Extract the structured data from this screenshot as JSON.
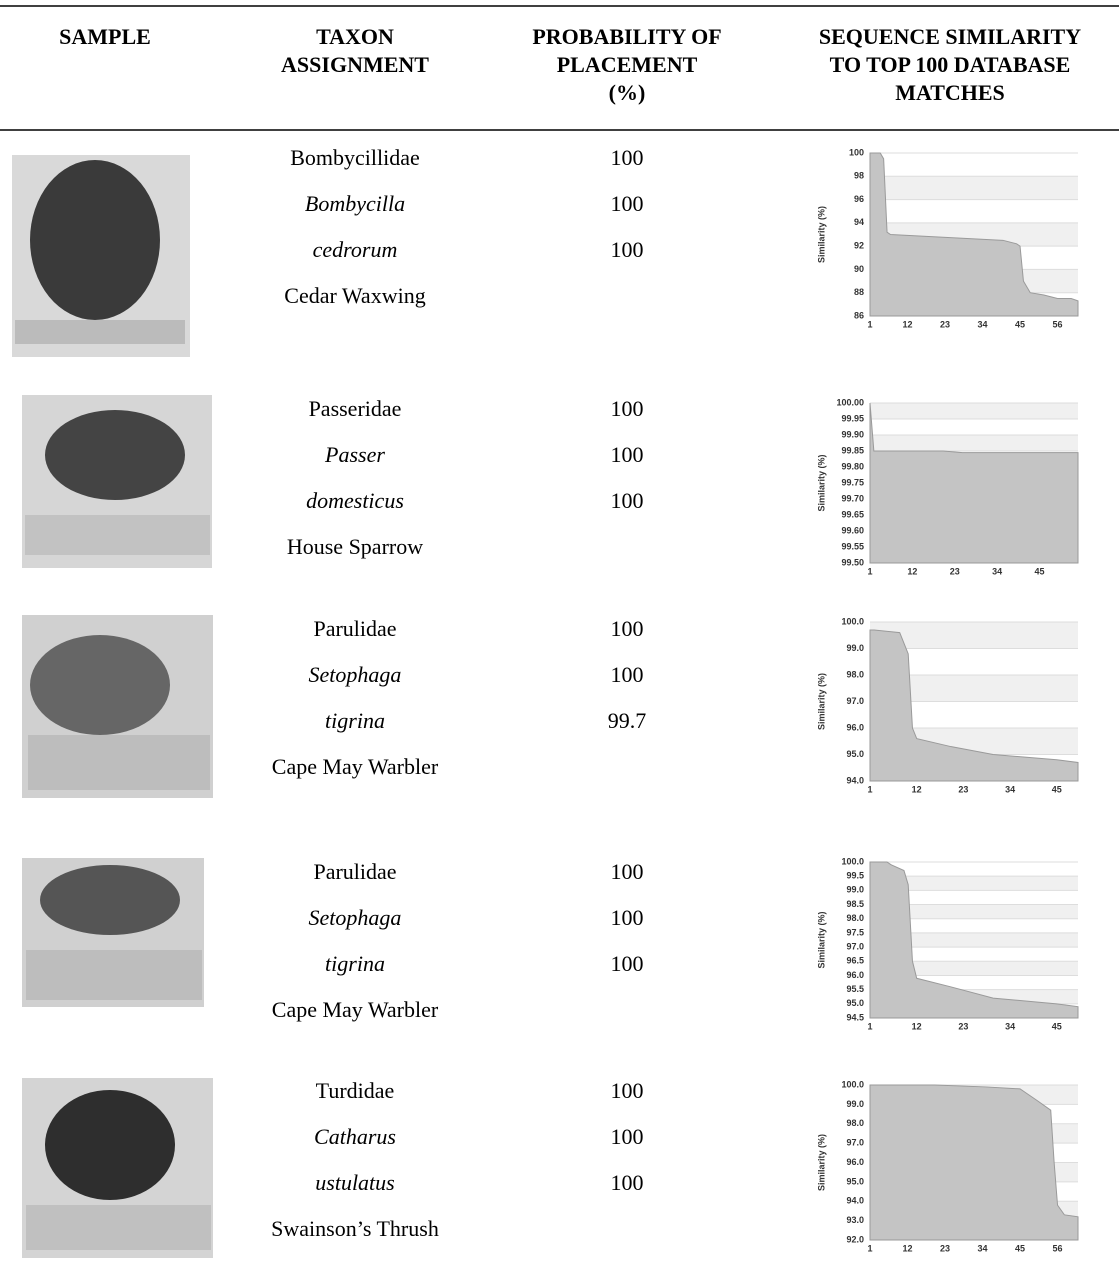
{
  "table": {
    "header": [
      [
        "SAMPLE"
      ],
      [
        "TAXON",
        "ASSIGNMENT"
      ],
      [
        "PROBABILITY OF",
        "PLACEMENT",
        "(%)"
      ],
      [
        "SEQUENCE SIMILARITY",
        "TO TOP 100 DATABASE",
        "MATCHES"
      ]
    ],
    "rows": [
      {
        "taxon": [
          "Bombycillidae",
          "Bombycilla",
          "cedrorum",
          "Cedar Waxwing"
        ],
        "probability": [
          100,
          100,
          100
        ],
        "chart": {
          "type": "area",
          "ylabel": "Similarity (%)",
          "color": "#c4c4c4",
          "x": [
            1,
            4,
            5,
            6,
            7,
            40,
            44,
            45,
            46,
            48,
            52,
            56,
            60,
            62
          ],
          "values": [
            100,
            100,
            99.5,
            93.2,
            93,
            92.5,
            92.2,
            92,
            89,
            88,
            87.8,
            87.5,
            87.5,
            87.3
          ],
          "xlim": [
            1,
            62
          ],
          "ylim": [
            86,
            100
          ],
          "xticks": [
            1,
            12,
            23,
            34,
            45,
            56
          ],
          "yticks": [
            86,
            88,
            90,
            92,
            94,
            96,
            98,
            100
          ]
        }
      },
      {
        "taxon": [
          "Passeridae",
          "Passer",
          "domesticus",
          "House Sparrow"
        ],
        "probability": [
          100,
          100,
          100
        ],
        "chart": {
          "type": "area",
          "ylabel": "Similarity (%)",
          "color": "#c4c4c4",
          "x": [
            1,
            2,
            3,
            20,
            25,
            55
          ],
          "values": [
            100,
            99.85,
            99.85,
            99.85,
            99.845,
            99.845
          ],
          "xlim": [
            1,
            55
          ],
          "ylim": [
            99.5,
            100
          ],
          "xticks": [
            1,
            12,
            23,
            34,
            45
          ],
          "yticks": [
            {
              "value": 99.5,
              "label": "99.50"
            },
            99.55,
            {
              "value": 99.6,
              "label": "99.60"
            },
            99.65,
            {
              "value": 99.7,
              "label": "99.70"
            },
            99.75,
            {
              "value": 99.8,
              "label": "99.80"
            },
            99.85,
            {
              "value": 99.9,
              "label": "99.90"
            },
            99.95,
            {
              "value": 100,
              "label": "100.00"
            }
          ]
        }
      },
      {
        "taxon": [
          "Parulidae",
          "Setophaga",
          "tigrina",
          "Cape May Warbler"
        ],
        "probability": [
          100,
          100,
          99.7
        ],
        "chart": {
          "type": "area",
          "ylabel": "Similarity (%)",
          "color": "#c4c4c4",
          "x": [
            1,
            2,
            8,
            10,
            11,
            12,
            20,
            30,
            45,
            50
          ],
          "values": [
            99.7,
            99.7,
            99.6,
            98.8,
            96,
            95.6,
            95.3,
            95,
            94.8,
            94.7
          ],
          "xlim": [
            1,
            50
          ],
          "ylim": [
            94,
            100
          ],
          "xticks": [
            1,
            12,
            23,
            34,
            45
          ],
          "yticks": [
            {
              "value": 94,
              "label": "94.0"
            },
            {
              "value": 95,
              "label": "95.0"
            },
            {
              "value": 96,
              "label": "96.0"
            },
            {
              "value": 97,
              "label": "97.0"
            },
            {
              "value": 98,
              "label": "98.0"
            },
            {
              "value": 99,
              "label": "99.0"
            },
            {
              "value": 100,
              "label": "100.0"
            }
          ]
        }
      },
      {
        "taxon": [
          "Parulidae",
          "Setophaga",
          "tigrina",
          "Cape May Warbler"
        ],
        "probability": [
          100,
          100,
          100
        ],
        "chart": {
          "type": "area",
          "ylabel": "Similarity (%)",
          "color": "#c4c4c4",
          "x": [
            1,
            5,
            6,
            9,
            10,
            11,
            12,
            20,
            30,
            45,
            50
          ],
          "values": [
            100,
            100,
            99.9,
            99.7,
            99.2,
            96.5,
            95.9,
            95.6,
            95.2,
            95,
            94.9
          ],
          "xlim": [
            1,
            50
          ],
          "ylim": [
            94.5,
            100
          ],
          "xticks": [
            1,
            12,
            23,
            34,
            45
          ],
          "yticks": [
            94.5,
            {
              "value": 95,
              "label": "95.0"
            },
            95.5,
            {
              "value": 96,
              "label": "96.0"
            },
            96.5,
            {
              "value": 97,
              "label": "97.0"
            },
            97.5,
            {
              "value": 98,
              "label": "98.0"
            },
            98.5,
            {
              "value": 99,
              "label": "99.0"
            },
            99.5,
            {
              "value": 100,
              "label": "100.0"
            }
          ]
        }
      },
      {
        "taxon": [
          "Turdidae",
          "Catharus",
          "ustulatus",
          "Swainson’s Thrush"
        ],
        "probability": [
          100,
          100,
          100
        ],
        "chart": {
          "type": "area",
          "ylabel": "Similarity (%)",
          "color": "#c4c4c4",
          "x": [
            1,
            20,
            35,
            45,
            50,
            54,
            55,
            56,
            58,
            62
          ],
          "values": [
            100,
            100,
            99.9,
            99.8,
            99.2,
            98.7,
            96,
            93.8,
            93.3,
            93.2
          ],
          "xlim": [
            1,
            62
          ],
          "ylim": [
            92,
            100
          ],
          "xticks": [
            1,
            12,
            23,
            34,
            45,
            56
          ],
          "yticks": [
            {
              "value": 92,
              "label": "92.0"
            },
            {
              "value": 93,
              "label": "93.0"
            },
            {
              "value": 94,
              "label": "94.0"
            },
            {
              "value": 95,
              "label": "95.0"
            },
            {
              "value": 96,
              "label": "96.0"
            },
            {
              "value": 97,
              "label": "97.0"
            },
            {
              "value": 98,
              "label": "98.0"
            },
            {
              "value": 99,
              "label": "99.0"
            },
            {
              "value": 100,
              "label": "100.0"
            }
          ]
        }
      }
    ]
  }
}
